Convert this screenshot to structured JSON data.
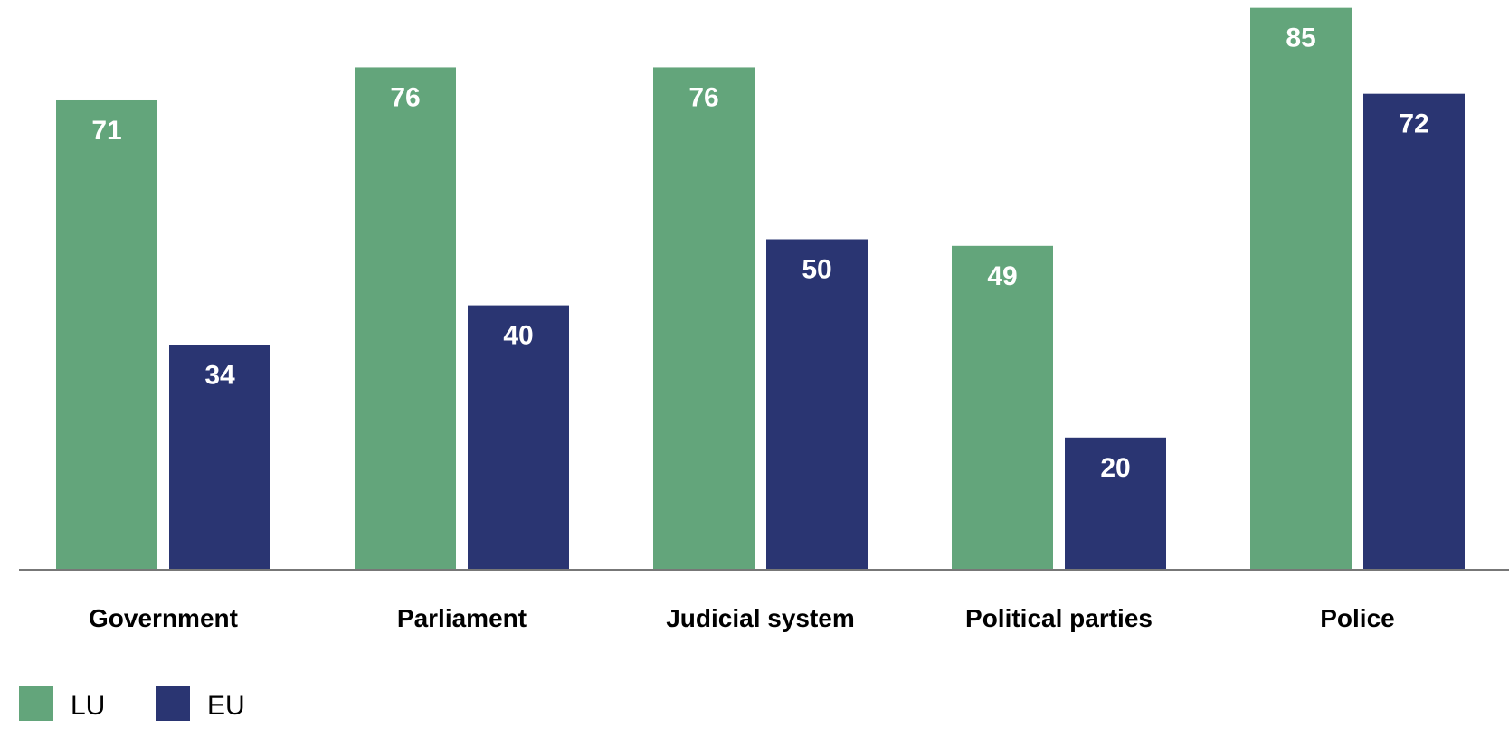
{
  "chart_data": {
    "type": "bar",
    "title": "",
    "xlabel": "",
    "ylabel": "",
    "ylim": [
      0,
      85
    ],
    "grid": false,
    "legend_position": "bottom-left",
    "categories": [
      "Government",
      "Parliament",
      "Judicial system",
      "Political parties",
      "Police"
    ],
    "series": [
      {
        "name": "LU",
        "color": "#63a57b",
        "values": [
          71,
          76,
          76,
          49,
          85
        ]
      },
      {
        "name": "EU",
        "color": "#2a3572",
        "values": [
          34,
          40,
          50,
          20,
          72
        ]
      }
    ]
  }
}
